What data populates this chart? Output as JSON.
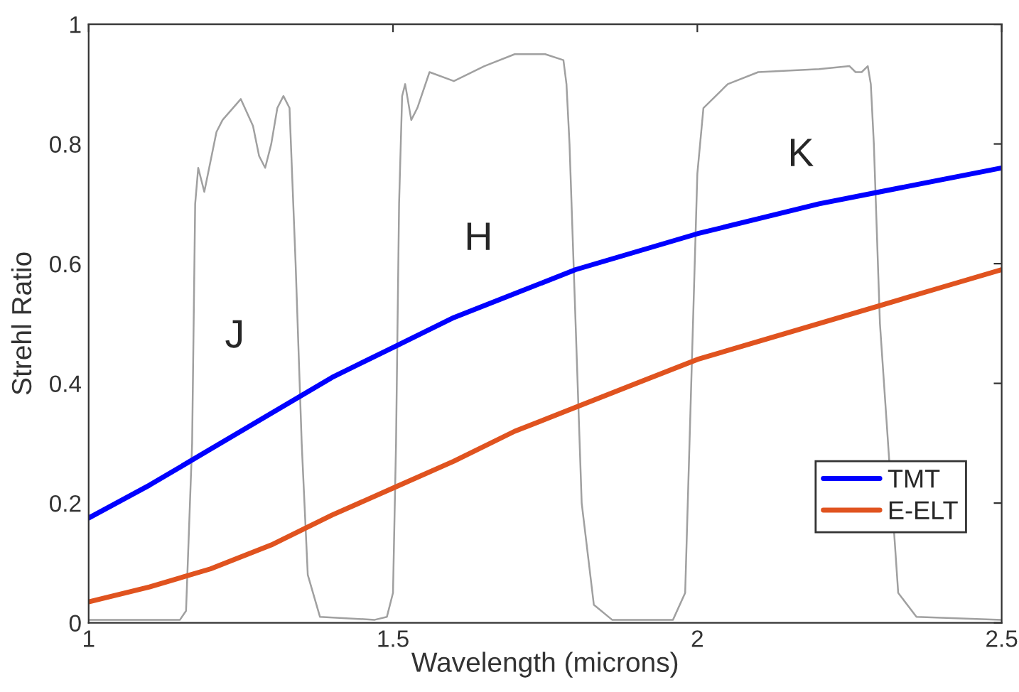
{
  "chart_data": {
    "type": "line",
    "xlabel": "Wavelength (microns)",
    "ylabel": "Strehl Ratio",
    "xlim": [
      1,
      2.5
    ],
    "ylim": [
      0,
      1
    ],
    "xticks": [
      1,
      1.5,
      2,
      2.5
    ],
    "yticks": [
      0,
      0.2,
      0.4,
      0.6,
      0.8,
      1
    ],
    "grid": false,
    "legend": "lower right",
    "marker": "none",
    "line_style": "solid",
    "annotations": [
      "J",
      "H",
      "K"
    ],
    "series": [
      {
        "color": "#a0a0a0",
        "x": [
          1.0,
          1.15,
          1.16,
          1.17,
          1.175,
          1.18,
          1.19,
          1.21,
          1.22,
          1.25,
          1.27,
          1.28,
          1.29,
          1.3,
          1.31,
          1.32,
          1.33,
          1.34,
          1.35,
          1.36,
          1.38,
          1.47,
          1.49,
          1.5,
          1.505,
          1.51,
          1.515,
          1.52,
          1.53,
          1.54,
          1.56,
          1.6,
          1.65,
          1.7,
          1.75,
          1.78,
          1.785,
          1.79,
          1.8,
          1.81,
          1.83,
          1.86,
          1.96,
          1.98,
          1.99,
          2.0,
          2.01,
          2.05,
          2.1,
          2.2,
          2.25,
          2.26,
          2.27,
          2.28,
          2.285,
          2.29,
          2.3,
          2.31,
          2.33,
          2.36,
          2.5
        ],
        "values": [
          0.005,
          0.005,
          0.02,
          0.3,
          0.7,
          0.76,
          0.72,
          0.82,
          0.84,
          0.875,
          0.83,
          0.78,
          0.76,
          0.8,
          0.86,
          0.88,
          0.86,
          0.6,
          0.3,
          0.08,
          0.01,
          0.005,
          0.01,
          0.05,
          0.3,
          0.7,
          0.88,
          0.9,
          0.84,
          0.86,
          0.92,
          0.905,
          0.93,
          0.95,
          0.95,
          0.94,
          0.9,
          0.8,
          0.5,
          0.2,
          0.03,
          0.005,
          0.005,
          0.05,
          0.4,
          0.75,
          0.86,
          0.9,
          0.92,
          0.925,
          0.93,
          0.92,
          0.92,
          0.93,
          0.9,
          0.8,
          0.5,
          null,
          0.05,
          0.01,
          0.005
        ]
      },
      {
        "name": "TMT",
        "color": "#0000ff",
        "x": [
          1.0,
          1.1,
          1.2,
          1.3,
          1.4,
          1.5,
          1.6,
          1.7,
          1.8,
          1.9,
          2.0,
          2.1,
          2.2,
          2.3,
          2.4,
          2.5
        ],
        "values": [
          0.175,
          0.23,
          0.29,
          0.35,
          0.41,
          0.46,
          0.51,
          0.55,
          0.59,
          0.62,
          0.65,
          0.675,
          0.7,
          0.72,
          0.74,
          0.76
        ]
      },
      {
        "name": "E-ELT",
        "color": "#e0531f",
        "x": [
          1.0,
          1.1,
          1.2,
          1.3,
          1.4,
          1.5,
          1.6,
          1.7,
          1.8,
          1.9,
          2.0,
          2.1,
          2.2,
          2.3,
          2.4,
          2.5
        ],
        "values": [
          0.035,
          0.06,
          0.09,
          0.13,
          0.18,
          0.225,
          0.27,
          0.32,
          0.36,
          0.4,
          0.44,
          0.47,
          0.5,
          0.53,
          0.56,
          0.59
        ]
      }
    ]
  }
}
